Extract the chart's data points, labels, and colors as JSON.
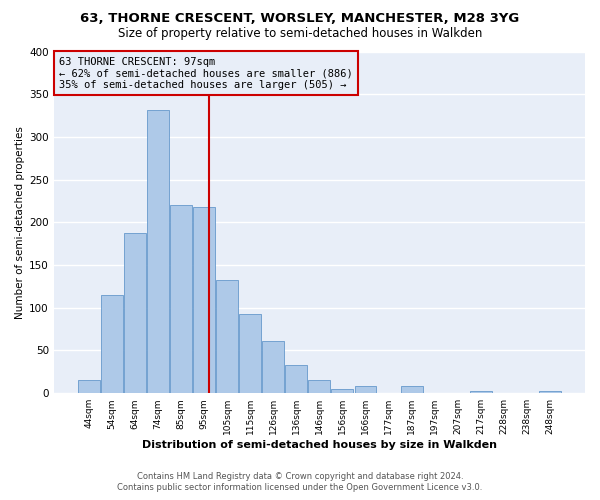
{
  "title": "63, THORNE CRESCENT, WORSLEY, MANCHESTER, M28 3YG",
  "subtitle": "Size of property relative to semi-detached houses in Walkden",
  "xlabel": "Distribution of semi-detached houses by size in Walkden",
  "ylabel": "Number of semi-detached properties",
  "bar_labels": [
    "44sqm",
    "54sqm",
    "64sqm",
    "74sqm",
    "85sqm",
    "95sqm",
    "105sqm",
    "115sqm",
    "126sqm",
    "136sqm",
    "146sqm",
    "156sqm",
    "166sqm",
    "177sqm",
    "187sqm",
    "197sqm",
    "207sqm",
    "217sqm",
    "228sqm",
    "238sqm",
    "248sqm"
  ],
  "bar_values": [
    16,
    115,
    187,
    331,
    220,
    218,
    133,
    93,
    61,
    33,
    16,
    5,
    8,
    0,
    8,
    0,
    0,
    3,
    0,
    0,
    3
  ],
  "bar_color": "#aec9e8",
  "bar_edge_color": "#6699cc",
  "vline_color": "#cc0000",
  "annotation_box_text": "63 THORNE CRESCENT: 97sqm\n← 62% of semi-detached houses are smaller (886)\n35% of semi-detached houses are larger (505) →",
  "ylim": [
    0,
    400
  ],
  "yticks": [
    0,
    50,
    100,
    150,
    200,
    250,
    300,
    350,
    400
  ],
  "footer_line1": "Contains HM Land Registry data © Crown copyright and database right 2024.",
  "footer_line2": "Contains public sector information licensed under the Open Government Licence v3.0.",
  "plot_bg_color": "#e8eef8",
  "fig_bg_color": "#ffffff",
  "grid_color": "#ffffff",
  "box_edge_color": "#cc0000",
  "box_bg_color": "#e8eef8",
  "title_fontsize": 9.5,
  "subtitle_fontsize": 8.5,
  "vline_x": 5.2
}
